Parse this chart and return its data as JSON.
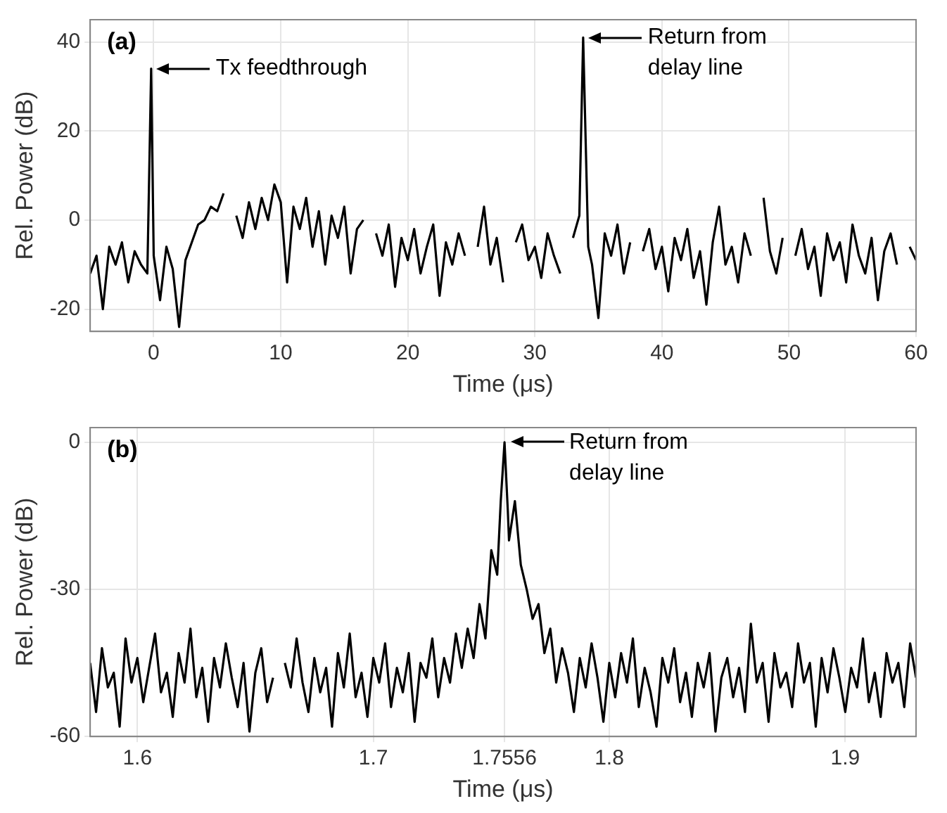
{
  "chart_data": [
    {
      "type": "line",
      "xlabel": "Time (μs)",
      "ylabel": "Rel. Power (dB)",
      "xlim": [
        -5,
        60
      ],
      "xticks": [
        0,
        10,
        20,
        30,
        40,
        50,
        60
      ],
      "ylim": [
        -25,
        45
      ],
      "yticks": [
        -20,
        0,
        20,
        40
      ],
      "grid": true,
      "marker": "none",
      "line_style": "solid",
      "annotations": [
        "(a)",
        {
          "text": "Tx feedthrough",
          "x": -0.2,
          "y": 34
        },
        {
          "text": "Return from\ndelay line",
          "x": 33.8,
          "y": 41
        }
      ],
      "series": [
        {
          "color": "#000000",
          "x": [
            -5,
            -4.5,
            -4,
            -3.5,
            -3,
            -2.5,
            -2,
            -1.5,
            -1,
            -0.5,
            -0.2,
            0,
            0.5,
            1,
            1.5,
            2,
            2.5,
            3,
            3.5,
            4,
            4.5,
            5,
            5.5,
            6,
            6.5,
            7,
            7.5,
            8,
            8.5,
            9,
            9.5,
            10,
            10.5,
            11,
            11.5,
            12,
            12.5,
            13,
            13.5,
            14,
            14.5,
            15,
            15.5,
            16,
            16.5,
            17,
            17.5,
            18,
            18.5,
            19,
            19.5,
            20,
            20.5,
            21,
            21.5,
            22,
            22.5,
            23,
            23.5,
            24,
            24.5,
            25,
            25.5,
            26,
            26.5,
            27,
            27.5,
            28,
            28.5,
            29,
            29.5,
            30,
            30.5,
            31,
            31.5,
            32,
            32.5,
            33,
            33.5,
            33.8,
            34.2,
            34.5,
            35,
            35.5,
            36,
            36.5,
            37,
            37.5,
            38,
            38.5,
            39,
            39.5,
            40,
            40.5,
            41,
            41.5,
            42,
            42.5,
            43,
            43.5,
            44,
            44.5,
            45,
            45.5,
            46,
            46.5,
            47,
            47.5,
            48,
            48.5,
            49,
            49.5,
            50,
            50.5,
            51,
            51.5,
            52,
            52.5,
            53,
            53.5,
            54,
            54.5,
            55,
            55.5,
            56,
            56.5,
            57,
            57.5,
            58,
            58.5,
            59,
            59.5,
            60
          ],
          "values": [
            -12,
            -8,
            -20,
            -6,
            -10,
            -5,
            -14,
            -7,
            -10,
            -12,
            34,
            -8,
            -18,
            -6,
            -11,
            -24,
            -9,
            -5,
            -1,
            0,
            3,
            2,
            6,
            null,
            1,
            -4,
            4,
            -2,
            5,
            0,
            8,
            4,
            -14,
            3,
            -2,
            5,
            -6,
            2,
            -10,
            1,
            -4,
            3,
            -12,
            -2,
            0,
            null,
            -3,
            -8,
            -1,
            -15,
            -4,
            -9,
            -2,
            -12,
            -6,
            -1,
            -17,
            -5,
            -10,
            -3,
            -8,
            null,
            -6,
            3,
            -10,
            -4,
            -14,
            null,
            -5,
            -1,
            -9,
            -6,
            -13,
            -3,
            -8,
            -12,
            null,
            -4,
            1,
            41,
            -6,
            -10,
            -22,
            -3,
            -8,
            -1,
            -12,
            -5,
            null,
            -7,
            -2,
            -11,
            -6,
            -16,
            -4,
            -9,
            -2,
            -13,
            -7,
            -19,
            -5,
            3,
            -10,
            -6,
            -14,
            -3,
            -8,
            null,
            5,
            -7,
            -12,
            -4,
            null,
            -8,
            -2,
            -11,
            -6,
            -17,
            -3,
            -9,
            -5,
            -14,
            -1,
            -8,
            -12,
            -4,
            -18,
            -7,
            -3,
            -10,
            null,
            -6,
            -9
          ]
        }
      ]
    },
    {
      "type": "line",
      "xlabel": "Time (μs)",
      "ylabel": "Rel. Power (dB)",
      "xlim": [
        1.58,
        1.93
      ],
      "xticks": [
        1.6,
        1.7,
        1.7556,
        1.8,
        1.9
      ],
      "ylim": [
        -60,
        3
      ],
      "yticks": [
        -60,
        -30,
        0
      ],
      "grid": true,
      "marker": "none",
      "line_style": "solid",
      "annotations": [
        "(b)",
        {
          "text": "Return from\ndelay line",
          "x": 1.7556,
          "y": 0
        }
      ],
      "series": [
        {
          "color": "#000000",
          "x": [
            1.58,
            1.5825,
            1.585,
            1.5875,
            1.59,
            1.5925,
            1.595,
            1.5975,
            1.6,
            1.6025,
            1.605,
            1.6075,
            1.61,
            1.6125,
            1.615,
            1.6175,
            1.62,
            1.6225,
            1.625,
            1.6275,
            1.63,
            1.6325,
            1.635,
            1.6375,
            1.64,
            1.6425,
            1.645,
            1.6475,
            1.65,
            1.6525,
            1.655,
            1.6575,
            1.66,
            1.6625,
            1.665,
            1.6675,
            1.67,
            1.6725,
            1.675,
            1.6775,
            1.68,
            1.6825,
            1.685,
            1.6875,
            1.69,
            1.6925,
            1.695,
            1.6975,
            1.7,
            1.7025,
            1.705,
            1.7075,
            1.71,
            1.7125,
            1.715,
            1.7175,
            1.72,
            1.7225,
            1.725,
            1.7275,
            1.73,
            1.7325,
            1.735,
            1.7375,
            1.74,
            1.7425,
            1.745,
            1.7475,
            1.75,
            1.7525,
            1.754,
            1.7556,
            1.757,
            1.7575,
            1.76,
            1.7625,
            1.765,
            1.7675,
            1.77,
            1.7725,
            1.775,
            1.7775,
            1.78,
            1.7825,
            1.785,
            1.7875,
            1.79,
            1.7925,
            1.795,
            1.7975,
            1.8,
            1.8025,
            1.805,
            1.8075,
            1.81,
            1.8125,
            1.815,
            1.8175,
            1.82,
            1.8225,
            1.825,
            1.8275,
            1.83,
            1.8325,
            1.835,
            1.8375,
            1.84,
            1.8425,
            1.845,
            1.8475,
            1.85,
            1.8525,
            1.855,
            1.8575,
            1.86,
            1.8625,
            1.865,
            1.8675,
            1.87,
            1.8725,
            1.875,
            1.8775,
            1.88,
            1.8825,
            1.885,
            1.8875,
            1.89,
            1.8925,
            1.895,
            1.8975,
            1.9,
            1.9025,
            1.905,
            1.9075,
            1.91,
            1.9125,
            1.915,
            1.9175,
            1.92,
            1.9225,
            1.925,
            1.9275,
            1.93
          ],
          "values": [
            -45,
            -55,
            -42,
            -50,
            -47,
            -58,
            -40,
            -49,
            -44,
            -53,
            -46,
            -39,
            -51,
            -47,
            -56,
            -43,
            -49,
            -38,
            -52,
            -46,
            -57,
            -44,
            -50,
            -41,
            -48,
            -54,
            -45,
            -59,
            -47,
            -42,
            -53,
            -48,
            null,
            -45,
            -50,
            -40,
            -49,
            -55,
            -44,
            -51,
            -46,
            -58,
            -43,
            -50,
            -39,
            -52,
            -47,
            -56,
            -44,
            -49,
            -41,
            -54,
            -46,
            -51,
            -43,
            -57,
            -45,
            -48,
            -40,
            -52,
            -44,
            -49,
            -39,
            -46,
            -38,
            -44,
            -33,
            -40,
            -22,
            -27,
            -12,
            0,
            -14,
            -20,
            -12,
            -25,
            -30,
            -36,
            -33,
            -43,
            -38,
            -49,
            -42,
            -47,
            -55,
            -44,
            -50,
            -41,
            -48,
            -57,
            -45,
            -52,
            -43,
            -49,
            -40,
            -54,
            -46,
            -51,
            -58,
            -44,
            -49,
            -42,
            -53,
            -47,
            -56,
            -45,
            -50,
            -43,
            -59,
            -48,
            -44,
            -52,
            -46,
            -55,
            -37,
            -49,
            -45,
            -57,
            -43,
            -50,
            -47,
            -54,
            -41,
            -49,
            -45,
            -58,
            -44,
            -51,
            -42,
            -48,
            -55,
            -46,
            -50,
            -40,
            -53,
            -47,
            -56,
            -43,
            -49,
            -45,
            -54,
            -41,
            -48
          ]
        }
      ]
    }
  ]
}
